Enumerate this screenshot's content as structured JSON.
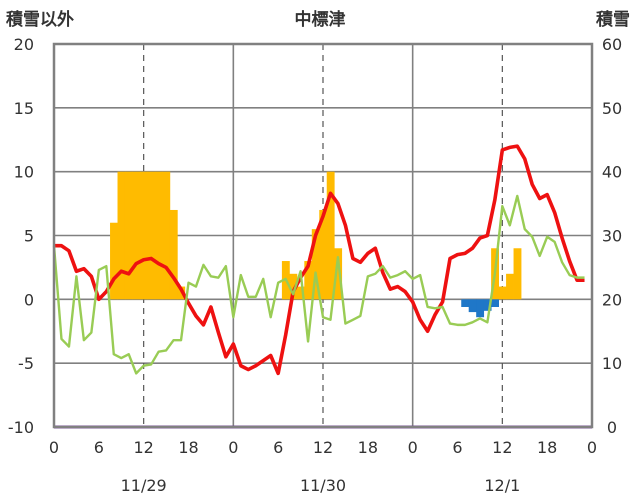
{
  "chart_data": {
    "type": "line",
    "title": "中標津",
    "ylabel_left": "積雪以外",
    "ylabel_right": "積雪",
    "ylim_left": [
      -10,
      20
    ],
    "ylim_right": [
      0,
      60
    ],
    "yticks_left": [
      "-10",
      "-5",
      "0",
      "5",
      "10",
      "15",
      "20"
    ],
    "yticks_right": [
      "0",
      "10",
      "20",
      "30",
      "40",
      "50",
      "60"
    ],
    "x_hour_ticks": [
      "0",
      "6",
      "12",
      "18",
      "0",
      "6",
      "12",
      "18",
      "0",
      "6",
      "12",
      "18",
      "0"
    ],
    "dates": [
      "11/29",
      "11/30",
      "12/1"
    ],
    "grid": true,
    "colors": {
      "red_line": "#ee1111",
      "green_line": "#99cc55",
      "orange_bars": "#ffbb00",
      "blue_bars": "#1f77c8",
      "purple_line": "#7030a0",
      "frame": "#808080"
    },
    "series": [
      {
        "type": "line",
        "color": "#ee1111",
        "x": [
          0,
          1,
          2,
          3,
          4,
          5,
          6,
          7,
          8,
          9,
          10,
          11,
          12,
          13,
          14,
          15,
          16,
          17,
          18,
          19,
          20,
          21,
          22,
          23,
          24,
          25,
          26,
          27,
          28,
          29,
          30,
          31,
          32,
          33,
          34,
          35,
          36,
          37,
          38,
          39,
          40,
          41,
          42,
          43,
          44,
          45,
          46,
          47,
          48,
          49,
          50,
          51,
          52,
          53,
          54,
          55,
          56,
          57,
          58,
          59,
          60,
          61,
          62,
          63,
          64,
          65,
          66,
          67,
          68,
          69,
          70,
          71
        ],
        "values": [
          4.2,
          4.2,
          3.8,
          2.2,
          2.4,
          1.8,
          0.0,
          0.6,
          1.6,
          2.2,
          2.0,
          2.8,
          3.1,
          3.2,
          2.8,
          2.5,
          1.7,
          0.8,
          -0.3,
          -1.3,
          -2.0,
          -0.6,
          -2.6,
          -4.5,
          -3.5,
          -5.2,
          -5.5,
          -5.2,
          -4.8,
          -4.4,
          -5.8,
          -2.8,
          0.6,
          1.7,
          2.6,
          5.0,
          6.5,
          8.3,
          7.5,
          5.8,
          3.2,
          2.9,
          3.6,
          4.0,
          2.1,
          0.8,
          1.0,
          0.6,
          -0.2,
          -1.6,
          -2.5,
          -1.2,
          -0.2,
          3.2,
          3.5,
          3.6,
          4.0,
          4.8,
          5.0,
          7.8,
          11.7,
          11.9,
          12.0,
          11.0,
          9.0,
          7.9,
          8.2,
          6.8,
          4.8,
          3.0,
          1.5,
          1.5
        ]
      },
      {
        "type": "line",
        "color": "#99cc55",
        "x": [
          0,
          1,
          2,
          3,
          4,
          5,
          6,
          7,
          8,
          9,
          10,
          11,
          12,
          13,
          14,
          15,
          16,
          17,
          18,
          19,
          20,
          21,
          22,
          23,
          24,
          25,
          26,
          27,
          28,
          29,
          30,
          31,
          32,
          33,
          34,
          35,
          36,
          37,
          38,
          39,
          40,
          41,
          42,
          43,
          44,
          45,
          46,
          47,
          48,
          49,
          50,
          51,
          52,
          53,
          54,
          55,
          56,
          57,
          58,
          59,
          60,
          61,
          62,
          63,
          64,
          65,
          66,
          67,
          68,
          69,
          70,
          71
        ],
        "values": [
          4.2,
          -3.1,
          -3.7,
          1.8,
          -3.2,
          -2.6,
          2.3,
          2.6,
          -4.3,
          -4.6,
          -4.3,
          -5.8,
          -5.2,
          -5.1,
          -4.1,
          -4.0,
          -3.2,
          -3.2,
          1.3,
          1.0,
          2.7,
          1.8,
          1.7,
          2.6,
          -1.4,
          1.9,
          0.2,
          0.2,
          1.6,
          -1.4,
          1.3,
          1.6,
          0.4,
          2.2,
          -3.3,
          2.1,
          -1.4,
          -1.6,
          3.3,
          -1.9,
          -1.6,
          -1.3,
          1.8,
          2.0,
          2.6,
          1.7,
          1.9,
          2.2,
          1.6,
          1.9,
          -0.6,
          -0.7,
          -0.6,
          -1.9,
          -2.0,
          -2.0,
          -1.8,
          -1.5,
          -1.8,
          2.0,
          7.3,
          5.8,
          8.1,
          5.5,
          4.9,
          3.4,
          4.9,
          4.5,
          2.9,
          1.9,
          1.7,
          1.7
        ]
      },
      {
        "type": "bar",
        "color": "#ffbb00",
        "x": [
          8,
          9,
          10,
          11,
          12,
          13,
          14,
          15,
          16,
          17,
          31,
          32,
          33,
          34,
          35,
          36,
          37,
          38,
          59,
          60,
          61,
          62,
          63
        ],
        "values": [
          6.0,
          10.0,
          10.0,
          10.0,
          10.0,
          10.0,
          10.0,
          10.0,
          7.0,
          1.0,
          3.0,
          2.0,
          1.0,
          3.0,
          5.5,
          7.0,
          10.0,
          4.0,
          4.0,
          1.0,
          2.0,
          4.0,
          0.0
        ]
      },
      {
        "type": "bar",
        "color": "#1f77c8",
        "x": [
          55,
          56,
          57,
          58,
          59
        ],
        "values": [
          -0.6,
          -1.0,
          -1.4,
          -0.9,
          -0.6
        ]
      },
      {
        "type": "line",
        "color": "#7030a0",
        "axis": "right",
        "x": [
          0,
          72
        ],
        "values": [
          0,
          0
        ]
      }
    ]
  }
}
